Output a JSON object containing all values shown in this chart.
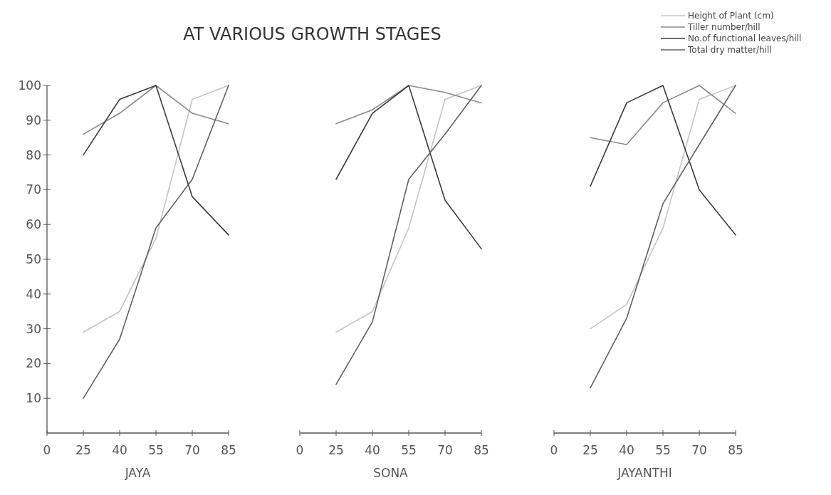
{
  "chart_data": [
    {
      "type": "line",
      "xlabel": "JAYA",
      "categories": [
        "0",
        "25",
        "40",
        "55",
        "70",
        "85"
      ],
      "ylim": [
        0,
        100
      ],
      "yticks": [
        10,
        20,
        30,
        40,
        50,
        60,
        70,
        80,
        90,
        100
      ],
      "grid": false,
      "legend": false,
      "marker": "none",
      "line_style": "solid",
      "series": [
        {
          "color": "#c4c4c4",
          "values": [
            null,
            29,
            35,
            56,
            96,
            100
          ]
        },
        {
          "color": "#8a8a8a",
          "values": [
            null,
            86,
            92,
            100,
            92,
            89
          ]
        },
        {
          "color": "#3a3a3a",
          "values": [
            null,
            80,
            96,
            100,
            68,
            57
          ]
        },
        {
          "color": "#606060",
          "values": [
            null,
            10,
            27,
            59,
            73,
            100
          ]
        }
      ]
    },
    {
      "type": "line",
      "title": "AT VARIOUS GROWTH STAGES",
      "xlabel": "SONA",
      "categories": [
        "0",
        "25",
        "40",
        "55",
        "70",
        "85"
      ],
      "ylim": [
        0,
        100
      ],
      "grid": false,
      "legend": false,
      "marker": "none",
      "line_style": "solid",
      "tick_labels": "x",
      "series": [
        {
          "color": "#c4c4c4",
          "values": [
            null,
            29,
            35,
            59,
            96,
            100
          ]
        },
        {
          "color": "#8a8a8a",
          "values": [
            null,
            89,
            93,
            100,
            98,
            95
          ]
        },
        {
          "color": "#3a3a3a",
          "values": [
            null,
            73,
            92,
            100,
            67,
            53
          ]
        },
        {
          "color": "#606060",
          "values": [
            null,
            14,
            32,
            73,
            86,
            100
          ]
        }
      ]
    },
    {
      "type": "line",
      "xlabel": "JAYANTHI",
      "categories": [
        "0",
        "25",
        "40",
        "55",
        "70",
        "85"
      ],
      "ylim": [
        0,
        100
      ],
      "grid": false,
      "legend": "top right",
      "marker": "none",
      "line_style": "solid",
      "tick_labels": "x",
      "series": [
        {
          "name": "Height of Plant (cm)",
          "color": "#c4c4c4",
          "values": [
            null,
            30,
            37,
            59,
            96,
            100
          ]
        },
        {
          "name": "Tiller number/hill",
          "color": "#8a8a8a",
          "values": [
            null,
            85,
            83,
            95,
            100,
            92
          ]
        },
        {
          "name": "No.of functional leaves/hill",
          "color": "#3a3a3a",
          "values": [
            null,
            71,
            95,
            100,
            70,
            57
          ]
        },
        {
          "name": "Total dry matter/hill",
          "color": "#606060",
          "values": [
            null,
            13,
            33,
            66,
            83,
            100
          ]
        }
      ]
    }
  ]
}
